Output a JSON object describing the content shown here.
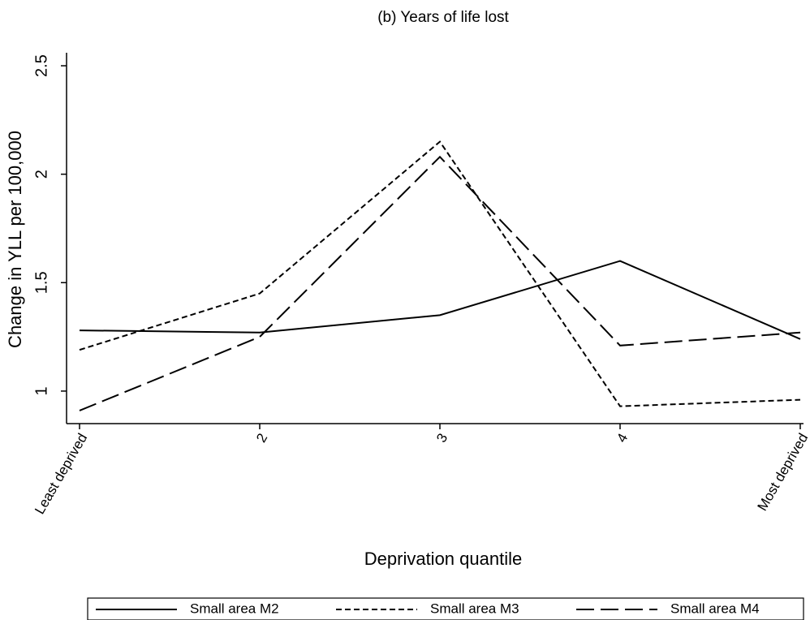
{
  "chart_data": {
    "type": "line",
    "title": "(b) Years of life lost",
    "x_label": "Deprivation quantile",
    "y_label": "Change in YLL per 100,000",
    "categories": [
      "Least deprived",
      "2",
      "3",
      "4",
      "Most deprived"
    ],
    "series": [
      {
        "name": "Small area M2",
        "color": "#000000",
        "line_style": "solid",
        "values": [
          1.28,
          1.27,
          1.35,
          1.6,
          1.24
        ]
      },
      {
        "name": "Small area M3",
        "color": "#000000",
        "line_style": "dashed",
        "values": [
          1.19,
          1.45,
          2.15,
          0.93,
          0.96
        ]
      },
      {
        "name": "Small area M4",
        "color": "#000000",
        "line_style": "longdash",
        "values": [
          0.91,
          1.25,
          2.08,
          1.21,
          1.27
        ]
      }
    ],
    "ylim": [
      0.85,
      2.56
    ],
    "yticks": [
      1,
      1.5,
      2,
      2.5
    ],
    "grid": false,
    "legend": "bottom"
  }
}
